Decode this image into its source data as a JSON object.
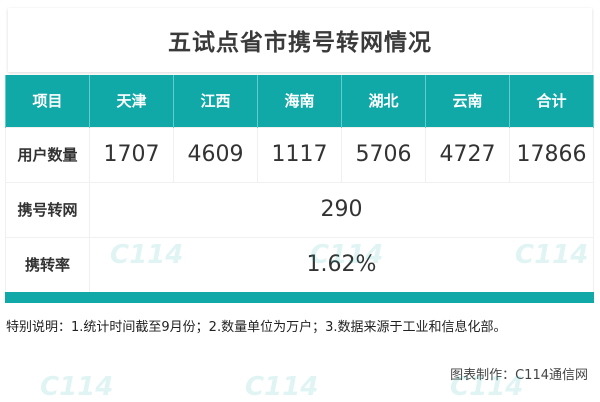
{
  "title": "五试点省市携号转网情况",
  "table": {
    "headers": [
      "项目",
      "天津",
      "江西",
      "海南",
      "湖北",
      "云南",
      "合计"
    ],
    "users": {
      "label": "用户数量",
      "values": [
        "1707",
        "4609",
        "1117",
        "5706",
        "4727",
        "17866"
      ]
    },
    "ported": {
      "label": "携号转网",
      "value": "290"
    },
    "rate": {
      "label": "携转率",
      "value": "1.62%"
    }
  },
  "note": "特别说明：1.统计时间截至9月份；2.数量单位为万户；3.数据来源于工业和信息化部。",
  "credit": "图表制作：C114通信网",
  "watermark": {
    "logo": "C114",
    "text": "通信网"
  },
  "colors": {
    "accent": "#10a9a8"
  }
}
